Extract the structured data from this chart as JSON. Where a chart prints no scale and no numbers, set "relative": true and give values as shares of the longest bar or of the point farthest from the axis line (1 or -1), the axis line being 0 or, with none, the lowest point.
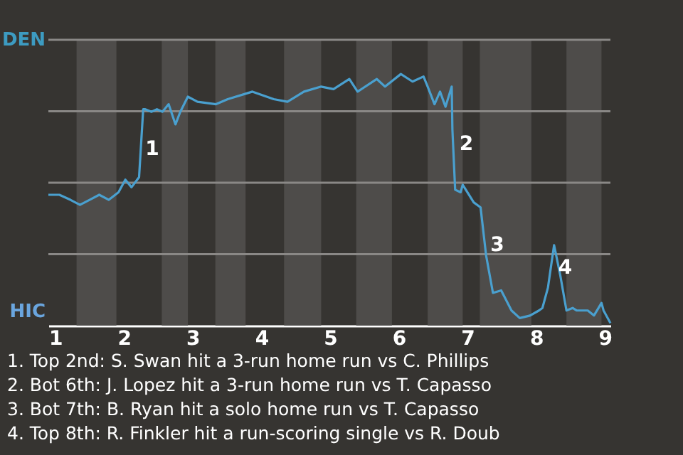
{
  "chart_data": {
    "type": "line",
    "relative": true,
    "x": [
      0.9,
      1.06,
      1.22,
      1.36,
      1.5,
      1.64,
      1.78,
      1.92,
      2.02,
      2.11,
      2.22,
      2.28,
      2.31,
      2.4,
      2.48,
      2.56,
      2.65,
      2.75,
      2.82,
      2.93,
      3.07,
      3.34,
      3.51,
      3.87,
      4.18,
      4.38,
      4.62,
      4.87,
      5.05,
      5.28,
      5.4,
      5.68,
      5.8,
      6.03,
      6.2,
      6.36,
      6.42,
      6.52,
      6.6,
      6.68,
      6.77,
      6.78,
      6.82,
      6.9,
      6.93,
      7.09,
      7.19,
      7.27,
      7.37,
      7.49,
      7.64,
      7.76,
      7.91,
      8.04,
      8.09,
      8.17,
      8.26,
      8.35,
      8.44,
      8.53,
      8.59,
      8.75,
      8.84,
      8.95,
      8.98,
      9.08
    ],
    "series": [
      {
        "color": "#4aa0cf",
        "values": [
          0.52,
          0.52,
          0.5,
          0.48,
          0.5,
          0.52,
          0.5,
          0.53,
          0.58,
          0.55,
          0.59,
          0.86,
          0.86,
          0.85,
          0.86,
          0.85,
          0.88,
          0.8,
          0.85,
          0.91,
          0.89,
          0.88,
          0.9,
          0.93,
          0.9,
          0.89,
          0.93,
          0.95,
          0.94,
          0.98,
          0.93,
          0.98,
          0.95,
          1,
          0.97,
          0.99,
          0.95,
          0.88,
          0.93,
          0.87,
          0.95,
          0.78,
          0.54,
          0.53,
          0.56,
          0.49,
          0.47,
          0.28,
          0.13,
          0.14,
          0.06,
          0.03,
          0.04,
          0.06,
          0.07,
          0.15,
          0.32,
          0.2,
          0.06,
          0.07,
          0.06,
          0.06,
          0.04,
          0.09,
          0.06,
          0.01
        ]
      }
    ],
    "xlim": [
      0.9,
      9.08
    ],
    "xticks": [
      1,
      2,
      3,
      4,
      5,
      6,
      7,
      8,
      9
    ],
    "tick_labels": "x",
    "grid": "y",
    "bands": [
      {
        "axis": "x",
        "from": 1.31,
        "to": 1.89,
        "color": "#4e4c4a"
      },
      {
        "axis": "x",
        "from": 2.55,
        "to": 2.93,
        "color": "#4e4c4a"
      },
      {
        "axis": "x",
        "from": 3.33,
        "to": 3.77,
        "color": "#4e4c4a"
      },
      {
        "axis": "x",
        "from": 4.33,
        "to": 4.87,
        "color": "#4e4c4a"
      },
      {
        "axis": "x",
        "from": 5.38,
        "to": 5.9,
        "color": "#4e4c4a"
      },
      {
        "axis": "x",
        "from": 6.42,
        "to": 6.93,
        "color": "#4e4c4a"
      },
      {
        "axis": "x",
        "from": 7.18,
        "to": 7.93,
        "color": "#4e4c4a"
      },
      {
        "axis": "x",
        "from": 8.44,
        "to": 8.95,
        "color": "#4e4c4a"
      }
    ],
    "annotations": [
      "DEN",
      "HIC",
      {
        "text": "1",
        "x": 2.33,
        "y": 0.7
      },
      {
        "text": "2",
        "x": 6.9,
        "y": 0.72
      },
      {
        "text": "3",
        "x": 7.35,
        "y": 0.32
      },
      {
        "text": "4",
        "x": 8.34,
        "y": 0.23
      },
      "1. Top 2nd: S. Swan hit a 3-run home run vs C. Phillips",
      "2. Bot 6th: J. Lopez hit a 3-run home run vs T. Capasso",
      "3. Bot 7th: B. Ryan hit a solo home run vs T. Capasso",
      "4. Top 8th: R. Finkler hit a run-scoring single vs R. Doub"
    ]
  }
}
